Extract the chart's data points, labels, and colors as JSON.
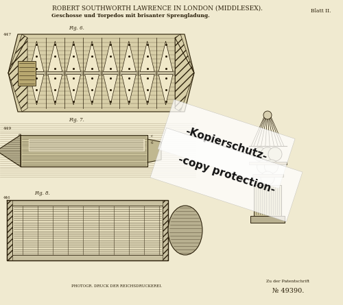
{
  "bg_color": "#f0ead0",
  "title_line1": "ROBERT SOUTHWORTH LAWRENCE IN LONDON (MIDDLESEX).",
  "title_line2": "Geschosse und Torpedos mit brisanter Sprengladung.",
  "blatt": "Blatt II.",
  "bottom_left_text": "PHOTOGR. DRUCK DER REICHSDRUCKEREI.",
  "bottom_right_text1": "Zu der Patentschrift",
  "bottom_right_text2": "№ 49390.",
  "watermark_line1": "-Kopierschutz-",
  "watermark_line2": "-copy protection-",
  "line_color": "#2a1f0a",
  "hatch_color": "#3a2f1a",
  "light_fill": "#e8e0c0",
  "mid_fill": "#c8b888",
  "dark_fill": "#8a7858"
}
